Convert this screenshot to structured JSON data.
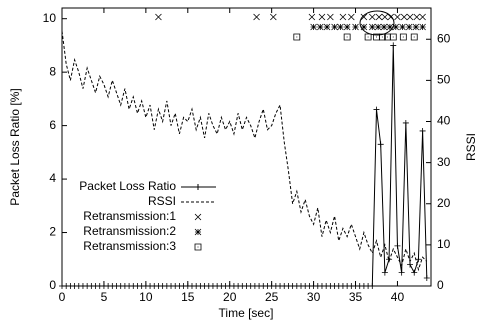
{
  "chart_data": {
    "type": "line",
    "xlabel": "Time [sec]",
    "ylabel": "Packet Loss Ratio [%]",
    "y2label": "RSSI",
    "xlim": [
      0,
      44
    ],
    "xticks": [
      0,
      5,
      10,
      15,
      20,
      25,
      30,
      35,
      40
    ],
    "ylim": [
      0,
      10.4
    ],
    "yticks": [
      0,
      2,
      4,
      6,
      8,
      10
    ],
    "y2lim": [
      0,
      67.6
    ],
    "y2ticks": [
      0,
      10,
      20,
      30,
      40,
      50,
      60
    ],
    "legend": "left",
    "x": [
      0,
      0.5,
      1,
      1.5,
      2,
      2.5,
      3,
      3.5,
      4,
      4.5,
      5,
      5.5,
      6,
      6.5,
      7,
      7.5,
      8,
      8.5,
      9,
      9.5,
      10,
      10.5,
      11,
      11.5,
      12,
      12.5,
      13,
      13.5,
      14,
      14.5,
      15,
      15.5,
      16,
      16.5,
      17,
      17.5,
      18,
      18.5,
      19,
      19.5,
      20,
      20.5,
      21,
      21.5,
      22,
      22.5,
      23,
      23.5,
      24,
      24.5,
      25,
      25.5,
      26,
      26.5,
      27,
      27.5,
      28,
      28.5,
      29,
      29.5,
      30,
      30.5,
      31,
      31.5,
      32,
      32.5,
      33,
      33.5,
      34,
      34.5,
      35,
      35.5,
      36,
      36.5,
      37,
      37.5,
      38,
      38.5,
      39,
      39.5,
      40,
      40.5,
      41,
      41.5,
      42,
      42.5,
      43,
      43.5
    ],
    "series": [
      {
        "name": "Packet Loss Ratio",
        "color": "#000000",
        "axis": "y",
        "values": [
          0,
          0,
          0,
          0,
          0,
          0,
          0,
          0,
          0,
          0,
          0,
          0,
          0,
          0,
          0,
          0,
          0,
          0,
          0,
          0,
          0,
          0,
          0,
          0,
          0,
          0,
          0,
          0,
          0,
          0,
          0,
          0,
          0,
          0,
          0,
          0,
          0,
          0,
          0,
          0,
          0,
          0,
          0,
          0,
          0,
          0,
          0,
          0,
          0,
          0,
          0,
          0,
          0,
          0,
          0,
          0,
          0,
          0,
          0,
          0,
          0,
          0,
          0,
          0,
          0,
          0,
          0,
          0,
          0,
          0,
          0,
          0,
          0,
          0,
          0,
          6.6,
          5.3,
          0.5,
          1,
          9.0,
          1.5,
          0.5,
          6.1,
          0.8,
          0.5,
          1,
          5.8,
          0.3
        ]
      },
      {
        "name": "RSSI",
        "color": "#000000",
        "axis": "y2",
        "values": [
          62,
          54,
          50,
          55,
          52,
          48,
          53,
          50,
          47,
          51,
          49,
          46,
          50,
          47,
          44,
          48,
          43,
          46,
          42,
          45,
          41,
          44,
          38,
          43,
          40,
          45,
          39,
          42,
          37,
          41,
          40,
          43,
          38,
          41,
          36,
          42,
          39,
          37,
          41,
          38,
          40,
          37,
          42,
          38,
          41,
          39,
          36,
          40,
          43,
          38,
          39,
          42,
          44,
          35,
          28,
          20,
          23,
          18,
          21,
          17,
          15,
          19,
          12,
          16,
          13,
          17,
          11,
          14,
          12,
          15,
          12,
          9,
          13,
          10,
          8,
          11,
          7,
          10,
          6,
          9,
          7,
          5,
          9,
          6,
          8,
          4,
          7,
          6
        ]
      }
    ],
    "events": [
      {
        "name": "Retransmission:1",
        "marker": "x",
        "x": [
          11.5,
          23.2,
          25.2,
          29.8,
          31,
          32,
          33.5,
          34.5,
          36,
          37,
          37.8,
          38.5,
          39.2,
          40,
          40.8,
          41.5,
          42.3,
          43
        ]
      },
      {
        "name": "Retransmission:2",
        "marker": "star",
        "x": [
          30,
          30.8,
          31.6,
          32.5,
          33.2,
          34,
          35,
          36,
          37,
          37.7,
          38.4,
          39.1,
          39.8,
          40.6,
          41.4,
          42.2,
          43
        ]
      },
      {
        "name": "Retransmission:3",
        "marker": "box",
        "x": [
          28,
          34,
          36.5,
          37.5,
          38.2,
          38.8,
          39.5,
          40.7,
          42
        ]
      }
    ]
  }
}
